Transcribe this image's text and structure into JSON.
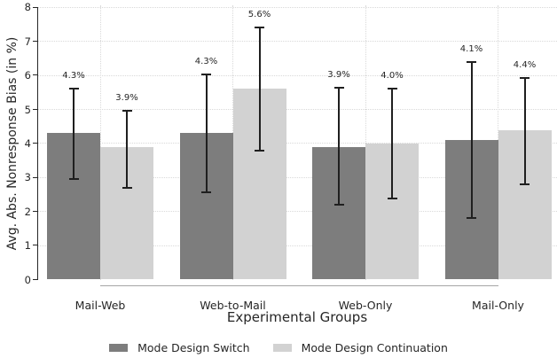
{
  "chart_data": {
    "type": "bar",
    "title": "",
    "xlabel": "Experimental Groups",
    "ylabel": "Avg. Abs. Nonresponse Bias (in %)",
    "ylim": [
      0,
      8
    ],
    "yticks": [
      "0",
      "1",
      "2",
      "3",
      "4",
      "5",
      "6",
      "7",
      "8"
    ],
    "grid": {
      "horizontal": true,
      "vertical": true,
      "style": "dotted",
      "color": "#d9d9d9"
    },
    "legend_position": "bottom-center",
    "categories": [
      "Mail-Web",
      "Web-to-Mail",
      "Web-Only",
      "Mail-Only"
    ],
    "series": [
      {
        "name": "Mode Design Switch",
        "color": "#7d7d7d",
        "values": [
          4.3,
          4.3,
          3.9,
          4.1
        ],
        "value_labels": [
          "4.3%",
          "4.3%",
          "3.9%",
          "4.1%"
        ],
        "ci_low": [
          2.96,
          2.57,
          2.21,
          1.82
        ],
        "ci_high": [
          5.6,
          6.03,
          5.64,
          6.39
        ]
      },
      {
        "name": "Mode Design Continuation",
        "color": "#d2d2d2",
        "values": [
          3.9,
          5.6,
          4.0,
          4.4
        ],
        "value_labels": [
          "3.9%",
          "5.6%",
          "4.0%",
          "4.4%"
        ],
        "ci_low": [
          2.7,
          3.79,
          2.39,
          2.81
        ],
        "ci_high": [
          4.96,
          7.4,
          5.61,
          5.92
        ]
      }
    ],
    "error_bars": true,
    "colors": {
      "error_bar": "#1f1f1f",
      "axis": "#262626",
      "gridline": "#d9d9d9",
      "category_baseline": "#a6a6a6",
      "text": "#262626"
    }
  }
}
